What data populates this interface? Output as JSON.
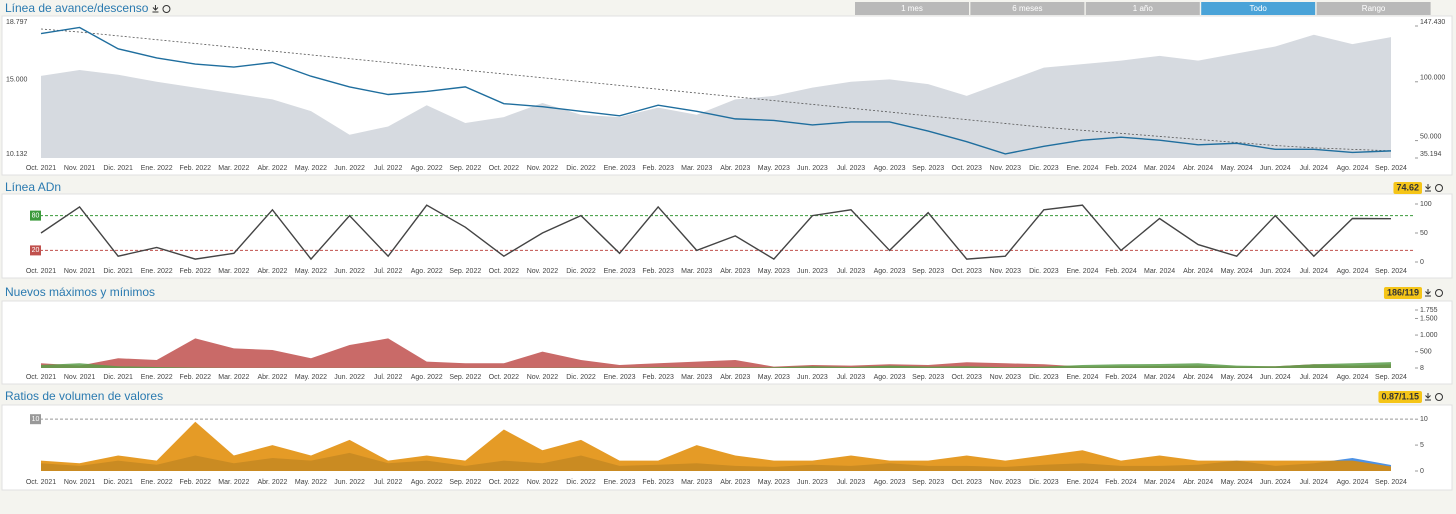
{
  "controls": {
    "ranges": [
      "1 mes",
      "6 meses",
      "1 año",
      "Todo",
      "Rango"
    ],
    "active": 3
  },
  "chart_data": [
    {
      "type": "line",
      "title": "Línea de avance/descenso",
      "categories": [
        "Oct. 2021",
        "Nov. 2021",
        "Dic. 2021",
        "Ene. 2022",
        "Feb. 2022",
        "Mar. 2022",
        "Abr. 2022",
        "May. 2022",
        "Jun. 2022",
        "Jul. 2022",
        "Ago. 2022",
        "Sep. 2022",
        "Oct. 2022",
        "Nov. 2022",
        "Dic. 2022",
        "Ene. 2023",
        "Feb. 2023",
        "Mar. 2023",
        "Abr. 2023",
        "May. 2023",
        "Jun. 2023",
        "Jul. 2023",
        "Ago. 2023",
        "Sep. 2023",
        "Oct. 2023",
        "Nov. 2023",
        "Dic. 2023",
        "Ene. 2024",
        "Feb. 2024",
        "Mar. 2024",
        "Abr. 2024",
        "May. 2024",
        "Jun. 2024",
        "Jul. 2024",
        "Ago. 2024",
        "Sep. 2024"
      ],
      "series": [
        {
          "style": "area",
          "axis": "y2",
          "color": "#d6dae0",
          "values": [
            105000,
            110000,
            106000,
            100000,
            95000,
            90000,
            85000,
            75000,
            55000,
            62000,
            80000,
            65000,
            70000,
            82000,
            72000,
            70000,
            78000,
            72000,
            85000,
            88000,
            95000,
            100000,
            102000,
            98000,
            88000,
            100000,
            112000,
            115000,
            118000,
            122000,
            118000,
            124000,
            130000,
            140000,
            132000,
            138000
          ]
        },
        {
          "style": "line",
          "dashed": true,
          "color": "#555",
          "values": [
            18600,
            18400,
            18150,
            17900,
            17650,
            17400,
            17150,
            16900,
            16650,
            16400,
            16150,
            15900,
            15650,
            15400,
            15150,
            14900,
            14650,
            14400,
            14150,
            13900,
            13650,
            13400,
            13150,
            12900,
            12650,
            12400,
            12150,
            11950,
            11750,
            11550,
            11350,
            11150,
            10950,
            10800,
            10700,
            10600
          ]
        },
        {
          "style": "line",
          "color": "#1f6e9e",
          "values": [
            18300,
            18700,
            17300,
            16700,
            16300,
            16100,
            16400,
            15500,
            14800,
            14300,
            14500,
            14800,
            13700,
            13500,
            13200,
            12900,
            13600,
            13200,
            12700,
            12600,
            12300,
            12500,
            12500,
            11900,
            11200,
            10400,
            10900,
            11300,
            11500,
            11300,
            11000,
            11100,
            10700,
            10700,
            10500,
            10600
          ]
        }
      ],
      "ylim": [
        10132,
        18797
      ],
      "yticks": [
        {
          "value": 10132,
          "label": "10.132"
        },
        {
          "value": 15000,
          "label": "15.000"
        },
        {
          "value": 18797,
          "label": "18.797"
        }
      ],
      "y2lim": [
        35194,
        147430
      ],
      "y2ticks": [
        {
          "value": 35194,
          "label": "35.194"
        },
        {
          "value": 50000,
          "label": "50.000"
        },
        {
          "value": 100000,
          "label": "100.000"
        },
        {
          "value": 147430,
          "label": "147.430"
        }
      ]
    },
    {
      "type": "line",
      "title": "Línea ADn",
      "categories": [
        "Oct. 2021",
        "Nov. 2021",
        "Dic. 2021",
        "Ene. 2022",
        "Feb. 2022",
        "Mar. 2022",
        "Abr. 2022",
        "May. 2022",
        "Jun. 2022",
        "Jul. 2022",
        "Ago. 2022",
        "Sep. 2022",
        "Oct. 2022",
        "Nov. 2022",
        "Dic. 2022",
        "Ene. 2023",
        "Feb. 2023",
        "Mar. 2023",
        "Abr. 2023",
        "May. 2023",
        "Jun. 2023",
        "Jul. 2023",
        "Ago. 2023",
        "Sep. 2023",
        "Oct. 2023",
        "Nov. 2023",
        "Dic. 2023",
        "Ene. 2024",
        "Feb. 2024",
        "Mar. 2024",
        "Abr. 2024",
        "May. 2024",
        "Jun. 2024",
        "Jul. 2024",
        "Ago. 2024",
        "Sep. 2024"
      ],
      "series": [
        {
          "style": "line",
          "color": "#444",
          "values": [
            50,
            95,
            10,
            25,
            5,
            15,
            90,
            5,
            80,
            10,
            98,
            60,
            10,
            50,
            80,
            15,
            95,
            20,
            45,
            5,
            80,
            90,
            20,
            85,
            5,
            10,
            90,
            98,
            20,
            75,
            30,
            10,
            80,
            10,
            75,
            74.62
          ]
        }
      ],
      "ylim": [
        0,
        100
      ],
      "yticks": [
        0,
        50,
        100
      ],
      "refs": [
        {
          "value": 80,
          "color": "#3a9a3a"
        },
        {
          "value": 20,
          "color": "#c0504d"
        }
      ]
    },
    {
      "type": "area",
      "title": "Nuevos máximos y mínimos",
      "last_label": "186/119",
      "categories": [
        "Oct. 2021",
        "Nov. 2021",
        "Dic. 2021",
        "Ene. 2022",
        "Feb. 2022",
        "Mar. 2022",
        "Abr. 2022",
        "May. 2022",
        "Jun. 2022",
        "Jul. 2022",
        "Ago. 2022",
        "Sep. 2022",
        "Oct. 2022",
        "Nov. 2022",
        "Dic. 2022",
        "Ene. 2023",
        "Feb. 2023",
        "Mar. 2023",
        "Abr. 2023",
        "May. 2023",
        "Jun. 2023",
        "Jul. 2023",
        "Ago. 2023",
        "Sep. 2023",
        "Oct. 2023",
        "Nov. 2023",
        "Dic. 2023",
        "Ene. 2024",
        "Feb. 2024",
        "Mar. 2024",
        "Abr. 2024",
        "May. 2024",
        "Jun. 2024",
        "Jul. 2024",
        "Ago. 2024",
        "Sep. 2024"
      ],
      "series": [
        {
          "style": "area",
          "color": "#c0504d",
          "values": [
            150,
            80,
            300,
            250,
            900,
            600,
            550,
            300,
            700,
            900,
            200,
            150,
            150,
            500,
            250,
            100,
            150,
            200,
            250,
            50,
            100,
            80,
            120,
            100,
            180,
            150,
            120,
            50,
            60,
            70,
            80,
            50,
            60,
            120,
            80,
            119
          ]
        },
        {
          "style": "area",
          "color": "#5a9e4a",
          "values": [
            100,
            150,
            60,
            40,
            20,
            10,
            15,
            10,
            10,
            20,
            15,
            10,
            10,
            10,
            20,
            15,
            30,
            20,
            25,
            30,
            60,
            40,
            80,
            50,
            60,
            30,
            50,
            100,
            120,
            130,
            150,
            80,
            60,
            120,
            150,
            186
          ]
        }
      ],
      "ylim": [
        8,
        1755
      ],
      "yticks": [
        8,
        500,
        {
          "value": 1000,
          "label": "1.000"
        },
        {
          "value": 1500,
          "label": "1.500"
        },
        {
          "value": 1755,
          "label": "1.755"
        }
      ]
    },
    {
      "type": "area",
      "title": "Ratios de volumen de valores",
      "last_label": "0.87/1.15",
      "categories": [
        "Oct. 2021",
        "Nov. 2021",
        "Dic. 2021",
        "Ene. 2022",
        "Feb. 2022",
        "Mar. 2022",
        "Abr. 2022",
        "May. 2022",
        "Jun. 2022",
        "Jul. 2022",
        "Ago. 2022",
        "Sep. 2022",
        "Oct. 2022",
        "Nov. 2022",
        "Dic. 2022",
        "Ene. 2023",
        "Feb. 2023",
        "Mar. 2023",
        "Abr. 2023",
        "May. 2023",
        "Jun. 2023",
        "Jul. 2023",
        "Ago. 2023",
        "Sep. 2023",
        "Oct. 2023",
        "Nov. 2023",
        "Dic. 2023",
        "Ene. 2024",
        "Feb. 2024",
        "Mar. 2024",
        "Abr. 2024",
        "May. 2024",
        "Jun. 2024",
        "Jul. 2024",
        "Ago. 2024",
        "Sep. 2024"
      ],
      "series": [
        {
          "style": "area",
          "color": "#2e7fe0",
          "values": [
            1.5,
            1,
            2,
            1.2,
            3,
            1.5,
            2.5,
            2,
            3.5,
            1.5,
            2,
            1,
            2,
            1.5,
            3,
            1,
            1.2,
            1.5,
            1,
            0.8,
            1.2,
            1,
            1.5,
            1,
            1,
            0.8,
            1.2,
            1.5,
            1,
            1,
            1.2,
            2,
            1,
            1.5,
            2.5,
            1.15
          ]
        },
        {
          "style": "area",
          "color": "#e08a00",
          "values": [
            2,
            1.5,
            3,
            2,
            9.5,
            3,
            5,
            3,
            6,
            2,
            3,
            2,
            8,
            4,
            6,
            2,
            2,
            5,
            3,
            2,
            2,
            3,
            2,
            2,
            3,
            2,
            3,
            4,
            2,
            3,
            2,
            2,
            2,
            2,
            2,
            0.87
          ]
        }
      ],
      "ylim": [
        0,
        11
      ],
      "yticks": [
        0,
        5,
        10
      ],
      "refs": [
        {
          "value": 10,
          "color": "#999"
        }
      ]
    }
  ]
}
